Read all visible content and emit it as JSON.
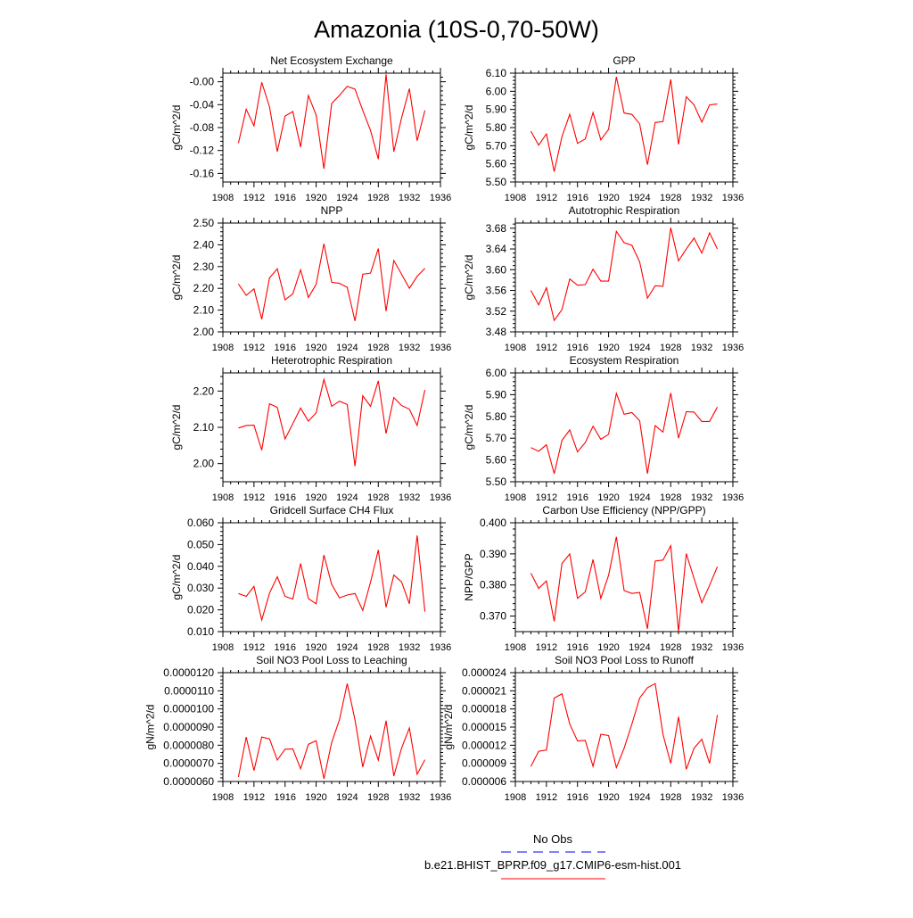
{
  "page": {
    "title": "Amazonia (10S-0,70-50W)"
  },
  "legend": {
    "entries": [
      {
        "label": "No Obs",
        "color": "#0000ff",
        "style": "dashed"
      },
      {
        "label": "b.e21.BHIST_BPRP.f09_g17.CMIP6-esm-hist.001",
        "color": "#ff0000",
        "style": "solid"
      }
    ]
  },
  "colors": {
    "series": "#ff0000",
    "obs": "#0000ff",
    "axis": "#000000"
  },
  "chart_data": [
    {
      "type": "line",
      "title": "Net Ecosystem Exchange",
      "xlabel": "",
      "ylabel": "gC/m^2/d",
      "xlim": [
        1908,
        1936
      ],
      "ylim": [
        -0.175,
        0.015
      ],
      "xticks": [
        1908,
        1912,
        1916,
        1920,
        1924,
        1928,
        1932,
        1936
      ],
      "yticks": [
        0,
        -0.04,
        -0.08,
        -0.12,
        -0.16
      ],
      "ytick_labels": [
        "-0.00",
        "-0.04",
        "-0.08",
        "-0.12",
        "-0.16"
      ],
      "series": [
        {
          "x": [
            1910,
            1911,
            1912,
            1913,
            1914,
            1915,
            1916,
            1917,
            1918,
            1919,
            1920,
            1921,
            1922,
            1923,
            1924,
            1925,
            1926,
            1927,
            1928,
            1929,
            1930,
            1931,
            1932,
            1933,
            1934
          ],
          "y": [
            -0.107,
            -0.048,
            -0.077,
            -0.001,
            -0.044,
            -0.122,
            -0.06,
            -0.052,
            -0.114,
            -0.024,
            -0.058,
            -0.152,
            -0.038,
            -0.024,
            -0.008,
            -0.013,
            -0.05,
            -0.085,
            -0.135,
            0.013,
            -0.122,
            -0.063,
            -0.012,
            -0.103,
            -0.05
          ]
        }
      ]
    },
    {
      "type": "line",
      "title": "GPP",
      "xlabel": "",
      "ylabel": "gC/m^2/d",
      "xlim": [
        1908,
        1936
      ],
      "ylim": [
        5.5,
        6.1
      ],
      "xticks": [
        1908,
        1912,
        1916,
        1920,
        1924,
        1928,
        1932,
        1936
      ],
      "yticks": [
        5.5,
        5.6,
        5.7,
        5.8,
        5.9,
        6.0,
        6.1
      ],
      "ytick_labels": [
        "5.50",
        "5.60",
        "5.70",
        "5.80",
        "5.90",
        "6.00",
        "6.10"
      ],
      "series": [
        {
          "x": [
            1910,
            1911,
            1912,
            1913,
            1914,
            1915,
            1916,
            1917,
            1918,
            1919,
            1920,
            1921,
            1922,
            1923,
            1924,
            1925,
            1926,
            1927,
            1928,
            1929,
            1930,
            1931,
            1932,
            1933,
            1934
          ],
          "y": [
            5.78,
            5.703,
            5.765,
            5.557,
            5.75,
            5.873,
            5.713,
            5.737,
            5.883,
            5.732,
            5.79,
            6.08,
            5.88,
            5.873,
            5.82,
            5.595,
            5.828,
            5.833,
            6.065,
            5.707,
            5.97,
            5.925,
            5.83,
            5.925,
            5.93
          ]
        }
      ]
    },
    {
      "type": "line",
      "title": "NPP",
      "xlabel": "",
      "ylabel": "gC/m^2/d",
      "xlim": [
        1908,
        1936
      ],
      "ylim": [
        2.0,
        2.5
      ],
      "xticks": [
        1908,
        1912,
        1916,
        1920,
        1924,
        1928,
        1932,
        1936
      ],
      "yticks": [
        2.0,
        2.1,
        2.2,
        2.3,
        2.4,
        2.5
      ],
      "ytick_labels": [
        "2.00",
        "2.10",
        "2.20",
        "2.30",
        "2.40",
        "2.50"
      ],
      "series": [
        {
          "x": [
            1910,
            1911,
            1912,
            1913,
            1914,
            1915,
            1916,
            1917,
            1918,
            1919,
            1920,
            1921,
            1922,
            1923,
            1924,
            1925,
            1926,
            1927,
            1928,
            1929,
            1930,
            1931,
            1932,
            1933,
            1934
          ],
          "y": [
            2.22,
            2.168,
            2.198,
            2.058,
            2.248,
            2.29,
            2.147,
            2.175,
            2.285,
            2.158,
            2.218,
            2.405,
            2.228,
            2.223,
            2.205,
            2.05,
            2.265,
            2.27,
            2.383,
            2.095,
            2.328,
            2.265,
            2.2,
            2.255,
            2.292
          ]
        }
      ]
    },
    {
      "type": "line",
      "title": "Autotrophic Respiration",
      "xlabel": "",
      "ylabel": "gC/m^2/d",
      "xlim": [
        1908,
        1936
      ],
      "ylim": [
        3.48,
        3.69
      ],
      "xticks": [
        1908,
        1912,
        1916,
        1920,
        1924,
        1928,
        1932,
        1936
      ],
      "yticks": [
        3.48,
        3.52,
        3.56,
        3.6,
        3.64,
        3.68
      ],
      "ytick_labels": [
        "3.48",
        "3.52",
        "3.56",
        "3.60",
        "3.64",
        "3.68"
      ],
      "series": [
        {
          "x": [
            1910,
            1911,
            1912,
            1913,
            1914,
            1915,
            1916,
            1917,
            1918,
            1919,
            1920,
            1921,
            1922,
            1923,
            1924,
            1925,
            1926,
            1927,
            1928,
            1929,
            1930,
            1931,
            1932,
            1933,
            1934
          ],
          "y": [
            3.56,
            3.532,
            3.565,
            3.502,
            3.523,
            3.582,
            3.57,
            3.571,
            3.601,
            3.578,
            3.578,
            3.674,
            3.652,
            3.647,
            3.615,
            3.545,
            3.569,
            3.568,
            3.681,
            3.617,
            3.64,
            3.661,
            3.632,
            3.671,
            3.64
          ]
        }
      ]
    },
    {
      "type": "line",
      "title": "Heterotrophic Respiration",
      "xlabel": "",
      "ylabel": "gC/m^2/d",
      "xlim": [
        1908,
        1936
      ],
      "ylim": [
        1.95,
        2.25
      ],
      "xticks": [
        1908,
        1912,
        1916,
        1920,
        1924,
        1928,
        1932,
        1936
      ],
      "yticks": [
        2.0,
        2.1,
        2.2
      ],
      "ytick_labels": [
        "2.00",
        "2.10",
        "2.20"
      ],
      "series": [
        {
          "x": [
            1910,
            1911,
            1912,
            1913,
            1914,
            1915,
            1916,
            1917,
            1918,
            1919,
            1920,
            1921,
            1922,
            1923,
            1924,
            1925,
            1926,
            1927,
            1928,
            1929,
            1930,
            1931,
            1932,
            1933,
            1934
          ],
          "y": [
            2.098,
            2.105,
            2.106,
            2.037,
            2.165,
            2.155,
            2.068,
            2.11,
            2.153,
            2.117,
            2.14,
            2.232,
            2.158,
            2.172,
            2.163,
            1.993,
            2.187,
            2.158,
            2.228,
            2.083,
            2.182,
            2.16,
            2.15,
            2.105,
            2.203
          ]
        }
      ]
    },
    {
      "type": "line",
      "title": "Ecosystem Respiration",
      "xlabel": "",
      "ylabel": "gC/m^2/d",
      "xlim": [
        1908,
        1936
      ],
      "ylim": [
        5.5,
        6.0
      ],
      "xticks": [
        1908,
        1912,
        1916,
        1920,
        1924,
        1928,
        1932,
        1936
      ],
      "yticks": [
        5.5,
        5.6,
        5.7,
        5.8,
        5.9,
        6.0
      ],
      "ytick_labels": [
        "5.50",
        "5.60",
        "5.70",
        "5.80",
        "5.90",
        "6.00"
      ],
      "series": [
        {
          "x": [
            1910,
            1911,
            1912,
            1913,
            1914,
            1915,
            1916,
            1917,
            1918,
            1919,
            1920,
            1921,
            1922,
            1923,
            1924,
            1925,
            1926,
            1927,
            1928,
            1929,
            1930,
            1931,
            1932,
            1933,
            1934
          ],
          "y": [
            5.657,
            5.64,
            5.67,
            5.537,
            5.69,
            5.738,
            5.637,
            5.68,
            5.755,
            5.695,
            5.718,
            5.906,
            5.81,
            5.818,
            5.78,
            5.537,
            5.758,
            5.728,
            5.908,
            5.7,
            5.822,
            5.82,
            5.777,
            5.777,
            5.843
          ]
        }
      ]
    },
    {
      "type": "line",
      "title": "Gridcell Surface CH4 Flux",
      "xlabel": "",
      "ylabel": "gC/m^2/d",
      "xlim": [
        1908,
        1936
      ],
      "ylim": [
        0.01,
        0.06
      ],
      "xticks": [
        1908,
        1912,
        1916,
        1920,
        1924,
        1928,
        1932,
        1936
      ],
      "yticks": [
        0.01,
        0.02,
        0.03,
        0.04,
        0.05,
        0.06
      ],
      "ytick_labels": [
        "0.010",
        "0.020",
        "0.030",
        "0.040",
        "0.050",
        "0.060"
      ],
      "series": [
        {
          "x": [
            1910,
            1911,
            1912,
            1913,
            1914,
            1915,
            1916,
            1917,
            1918,
            1919,
            1920,
            1921,
            1922,
            1923,
            1924,
            1925,
            1926,
            1927,
            1928,
            1929,
            1930,
            1931,
            1932,
            1933,
            1934
          ],
          "y": [
            0.0275,
            0.0262,
            0.0308,
            0.0153,
            0.0277,
            0.0352,
            0.0262,
            0.025,
            0.0413,
            0.0252,
            0.0228,
            0.0452,
            0.0317,
            0.0255,
            0.0268,
            0.0275,
            0.0197,
            0.0327,
            0.0475,
            0.0212,
            0.036,
            0.0328,
            0.0228,
            0.0542,
            0.0192
          ]
        }
      ]
    },
    {
      "type": "line",
      "title": "Carbon Use Efficiency (NPP/GPP)",
      "xlabel": "",
      "ylabel": "NPP/GPP",
      "xlim": [
        1908,
        1936
      ],
      "ylim": [
        0.365,
        0.4
      ],
      "xticks": [
        1908,
        1912,
        1916,
        1920,
        1924,
        1928,
        1932,
        1936
      ],
      "yticks": [
        0.37,
        0.38,
        0.39,
        0.4
      ],
      "ytick_labels": [
        "0.370",
        "0.380",
        "0.390",
        "0.400"
      ],
      "series": [
        {
          "x": [
            1910,
            1911,
            1912,
            1913,
            1914,
            1915,
            1916,
            1917,
            1918,
            1919,
            1920,
            1921,
            1922,
            1923,
            1924,
            1925,
            1926,
            1927,
            1928,
            1929,
            1930,
            1931,
            1932,
            1933,
            1934
          ],
          "y": [
            0.3838,
            0.3789,
            0.3813,
            0.3683,
            0.3869,
            0.39,
            0.3757,
            0.3778,
            0.3882,
            0.3757,
            0.3831,
            0.3955,
            0.3782,
            0.3773,
            0.3776,
            0.3659,
            0.3877,
            0.388,
            0.3926,
            0.365,
            0.3901,
            0.3821,
            0.3743,
            0.3799,
            0.3859
          ]
        }
      ]
    },
    {
      "type": "line",
      "title": "Soil NO3 Pool Loss to Leaching",
      "xlabel": "",
      "ylabel": "gN/m^2/d",
      "xlim": [
        1908,
        1936
      ],
      "ylim": [
        6e-06,
        1.2e-05
      ],
      "xticks": [
        1908,
        1912,
        1916,
        1920,
        1924,
        1928,
        1932,
        1936
      ],
      "yticks": [
        6e-06,
        7e-06,
        8e-06,
        9e-06,
        1e-05,
        1.1e-05,
        1.2e-05
      ],
      "ytick_labels": [
        "0.0000060",
        "0.0000070",
        "0.0000080",
        "0.0000090",
        "0.0000100",
        "0.0000110",
        "0.0000120"
      ],
      "series": [
        {
          "x": [
            1910,
            1911,
            1912,
            1913,
            1914,
            1915,
            1916,
            1917,
            1918,
            1919,
            1920,
            1921,
            1922,
            1923,
            1924,
            1925,
            1926,
            1927,
            1928,
            1929,
            1930,
            1931,
            1932,
            1933,
            1934
          ],
          "y": [
            6.25e-06,
            8.45e-06,
            6.6e-06,
            8.45e-06,
            8.35e-06,
            7.18e-06,
            7.78e-06,
            7.8e-06,
            6.7e-06,
            8.05e-06,
            8.25e-06,
            6.15e-06,
            8.15e-06,
            9.4e-06,
            1.14e-05,
            9.4e-06,
            6.8e-06,
            8.5e-06,
            7.18e-06,
            9.35e-06,
            6.3e-06,
            7.85e-06,
            8.95e-06,
            6.4e-06,
            7.2e-06
          ]
        }
      ]
    },
    {
      "type": "line",
      "title": "Soil NO3 Pool Loss to Runoff",
      "xlabel": "",
      "ylabel": "gN/m^2/d",
      "xlim": [
        1908,
        1936
      ],
      "ylim": [
        6e-06,
        2.4e-05
      ],
      "xticks": [
        1908,
        1912,
        1916,
        1920,
        1924,
        1928,
        1932,
        1936
      ],
      "yticks": [
        6e-06,
        9e-06,
        1.2e-05,
        1.5e-05,
        1.8e-05,
        2.1e-05,
        2.4e-05
      ],
      "ytick_labels": [
        "0.000006",
        "0.000009",
        "0.000012",
        "0.000015",
        "0.000018",
        "0.000021",
        "0.000024"
      ],
      "series": [
        {
          "x": [
            1910,
            1911,
            1912,
            1913,
            1914,
            1915,
            1916,
            1917,
            1918,
            1919,
            1920,
            1921,
            1922,
            1923,
            1924,
            1925,
            1926,
            1927,
            1928,
            1929,
            1930,
            1931,
            1932,
            1933,
            1934
          ],
          "y": [
            8.5e-06,
            1.1e-05,
            1.12e-05,
            1.98e-05,
            2.05e-05,
            1.55e-05,
            1.27e-05,
            1.28e-05,
            8.5e-06,
            1.38e-05,
            1.36e-05,
            8.3e-06,
            1.15e-05,
            1.55e-05,
            1.98e-05,
            2.15e-05,
            2.22e-05,
            1.38e-05,
            9e-06,
            1.67e-05,
            8e-06,
            1.15e-05,
            1.3e-05,
            9e-06,
            1.7e-05
          ]
        }
      ]
    }
  ]
}
